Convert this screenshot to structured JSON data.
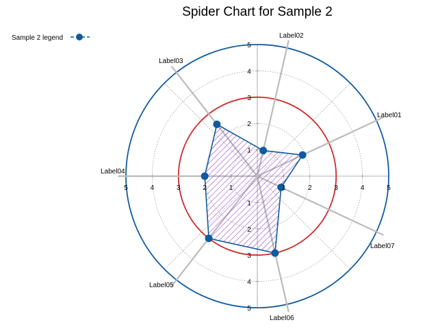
{
  "chart_data": {
    "type": "radar",
    "title": "Spider Chart for Sample 2",
    "legend": {
      "label": "Sample 2 legend",
      "position": "top-left"
    },
    "axes": [
      "Label01",
      "Label02",
      "Label03",
      "Label04",
      "Label05",
      "Label06",
      "Label07"
    ],
    "axis_angles_deg": [
      25,
      77,
      128,
      180,
      232,
      283,
      335
    ],
    "series": [
      {
        "name": "Sample 2 legend",
        "values": [
          1.9,
          1.0,
          2.5,
          2.0,
          3.0,
          3.0,
          1.0
        ]
      }
    ],
    "rlim": [
      0,
      5
    ],
    "rticks": [
      1,
      2,
      3,
      4,
      5
    ],
    "tick_labels": [
      "1",
      "2",
      "3",
      "4",
      "5"
    ],
    "highlight_ring": 3,
    "grid": true,
    "colors": {
      "series_line": "#0f5aa0",
      "series_marker": "#0f5aa0",
      "hatch": "#8a1fb8",
      "outer_ring": "#0f5aa0",
      "highlight_ring": "#d02828",
      "spokes": "#bbbbbb",
      "grid": "#999999"
    }
  }
}
